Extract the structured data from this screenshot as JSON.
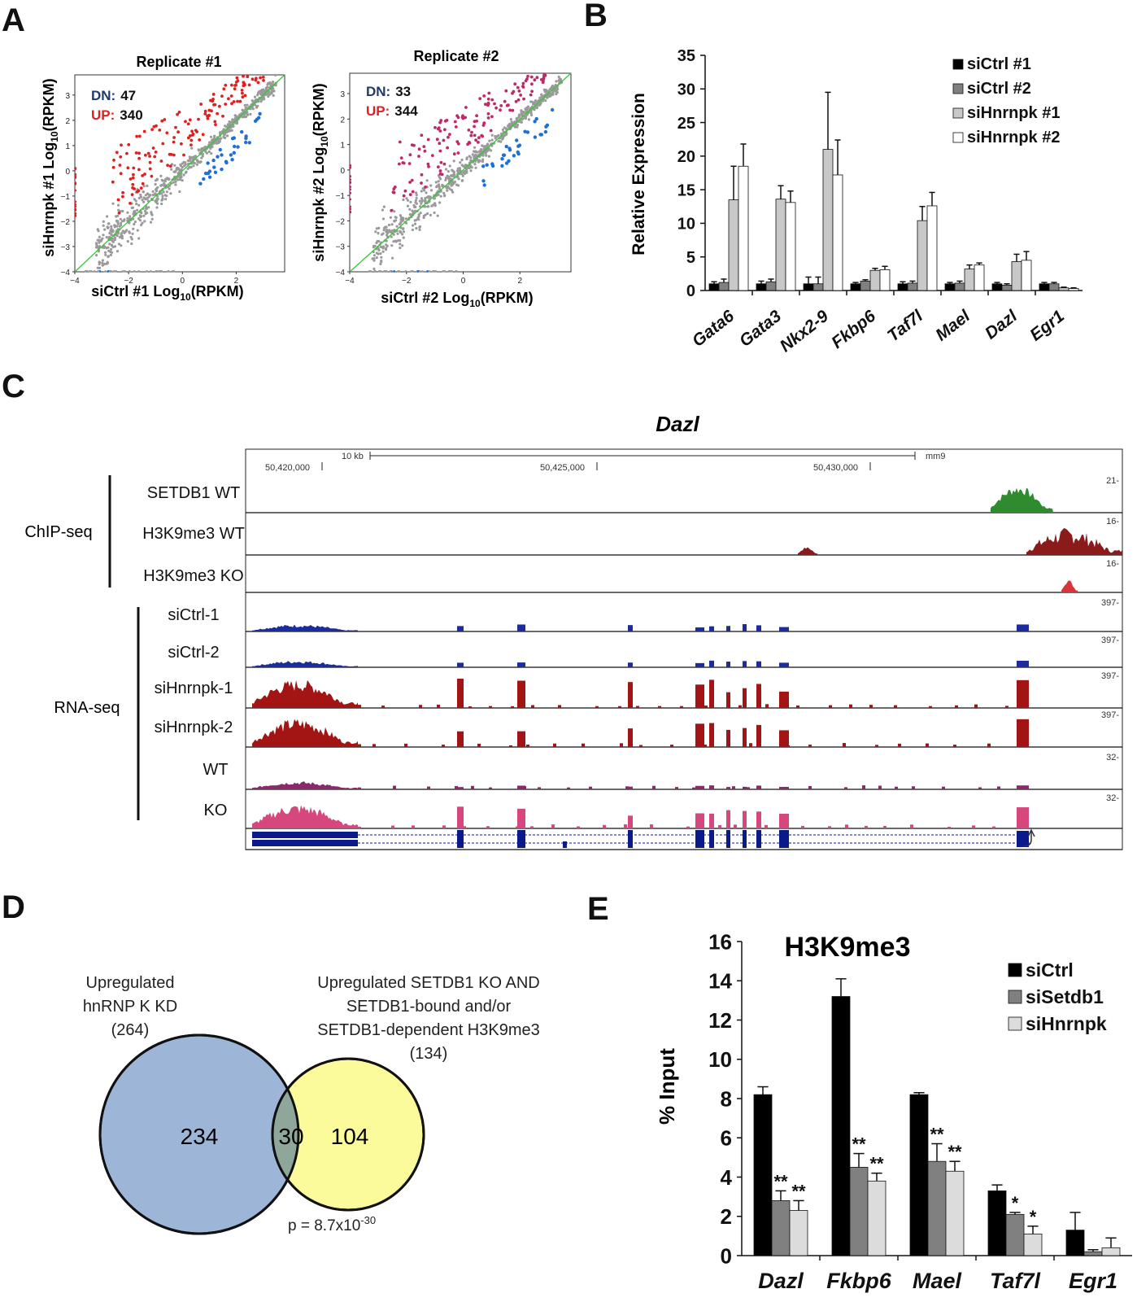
{
  "panel_labels": {
    "a": "A",
    "b": "B",
    "c": "C",
    "d": "D",
    "e": "E"
  },
  "chart_data": [
    {
      "type": "scatter",
      "panel": "A",
      "title": "Replicate #1",
      "xlabel": "siCtrl #1 Log10(RPKM)",
      "xlabel_main": "siCtrl #1 Log",
      "xlabel_sub": "10",
      "xlabel_tail": "(RPKM)",
      "ylabel": "siHnrnpk #1 Log10(RPKM)",
      "ylabel_main": "siHnrnpk #1 Log",
      "ylabel_sub": "10",
      "ylabel_tail": "(RPKM)",
      "xlim": [
        -4,
        3.8
      ],
      "ylim": [
        -4,
        3.8
      ],
      "xticks": [
        -4,
        -2,
        0,
        2
      ],
      "yticks": [
        3,
        2,
        1,
        0,
        -1,
        -2,
        -3,
        -4
      ],
      "dn_label": "DN:",
      "dn_value": "47",
      "up_label": "UP:",
      "up_value": "340",
      "series": [
        {
          "name": "DN",
          "color": "#1e6fd9"
        },
        {
          "name": "UP",
          "color": "#e02020"
        },
        {
          "name": "",
          "color": "#9a9a9a"
        }
      ]
    },
    {
      "type": "scatter",
      "panel": "A",
      "title": "Replicate #2",
      "xlabel": "siCtrl #2 Log10(RPKM)",
      "xlabel_main": "siCtrl #2 Log",
      "xlabel_sub": "10",
      "xlabel_tail": "(RPKM)",
      "ylabel": "siHnrnpk #2 Log10(RPKM)",
      "ylabel_main": "siHnrnpk #2 Log",
      "ylabel_sub": "10",
      "ylabel_tail": "(RPKM)",
      "xlim": [
        -4,
        3.8
      ],
      "ylim": [
        -4,
        3.8
      ],
      "xticks": [
        -4,
        -2,
        0,
        2
      ],
      "yticks": [
        3,
        2,
        1,
        0,
        -1,
        -2,
        -3,
        -4
      ],
      "dn_label": "DN:",
      "dn_value": "33",
      "up_label": "UP:",
      "up_value": "344",
      "series": [
        {
          "name": "DN",
          "color": "#1e6fd9"
        },
        {
          "name": "UP",
          "color": "#c0286a"
        },
        {
          "name": "",
          "color": "#9a9a9a"
        }
      ]
    },
    {
      "type": "bar",
      "panel": "B",
      "ylabel": "Relative Expression",
      "ylim": [
        0,
        35
      ],
      "yticks": [
        0,
        5,
        10,
        15,
        20,
        25,
        30,
        35
      ],
      "categories": [
        "Gata6",
        "Gata3",
        "Nkx2-9",
        "Fkbp6",
        "Taf7l",
        "Mael",
        "Dazl",
        "Egr1"
      ],
      "legend_position": "top-right",
      "series": [
        {
          "name": "siCtrl #1",
          "color": "#000000",
          "values": [
            1.0,
            1.0,
            1.0,
            1.0,
            1.0,
            1.0,
            1.0,
            1.0
          ],
          "errors": [
            0.3,
            0.4,
            1.0,
            0.2,
            0.3,
            0.2,
            0.2,
            0.2
          ]
        },
        {
          "name": "siCtrl #2",
          "color": "#808080",
          "values": [
            1.2,
            1.3,
            1.0,
            1.4,
            1.1,
            1.1,
            0.8,
            1.0
          ],
          "errors": [
            0.5,
            0.4,
            1.0,
            0.2,
            0.3,
            0.3,
            0.2,
            0.2
          ]
        },
        {
          "name": "siHnrnpk #1",
          "color": "#c8c8c8",
          "values": [
            13.5,
            13.6,
            21.0,
            3.0,
            10.4,
            3.2,
            4.3,
            0.4
          ],
          "errors": [
            5.0,
            2.0,
            8.5,
            0.3,
            2.1,
            0.6,
            1.1,
            0.1
          ]
        },
        {
          "name": "siHnrnpk #2",
          "color": "#ffffff",
          "values": [
            18.5,
            13.1,
            17.2,
            3.1,
            12.6,
            3.8,
            4.5,
            0.3
          ],
          "errors": [
            3.3,
            1.7,
            5.2,
            0.5,
            2.0,
            0.3,
            1.3,
            0.1
          ]
        }
      ]
    },
    {
      "type": "bar",
      "panel": "E",
      "title": "H3K9me3",
      "ylabel": "% Input",
      "ylim": [
        0,
        16
      ],
      "yticks": [
        0,
        2,
        4,
        6,
        8,
        10,
        12,
        14,
        16
      ],
      "categories": [
        "Dazl",
        "Fkbp6",
        "Mael",
        "Taf7l",
        "Egr1"
      ],
      "legend_position": "top-right",
      "series": [
        {
          "name": "siCtrl",
          "color": "#000000",
          "values": [
            8.2,
            13.2,
            8.2,
            3.3,
            1.3
          ],
          "errors": [
            0.4,
            0.9,
            0.1,
            0.3,
            0.9
          ],
          "stars": [
            "",
            "",
            "",
            "",
            ""
          ]
        },
        {
          "name": "siSetdb1",
          "color": "#808080",
          "values": [
            2.8,
            4.5,
            4.8,
            2.1,
            0.2
          ],
          "errors": [
            0.5,
            0.7,
            0.9,
            0.1,
            0.1
          ],
          "stars": [
            "**",
            "**",
            "**",
            "*",
            ""
          ]
        },
        {
          "name": "siHnrnpk",
          "color": "#dcdcdc",
          "values": [
            2.3,
            3.8,
            4.3,
            1.1,
            0.4
          ],
          "errors": [
            0.5,
            0.4,
            0.5,
            0.4,
            0.5
          ],
          "stars": [
            "**",
            "**",
            "**",
            "*",
            ""
          ]
        }
      ]
    }
  ],
  "browser": {
    "gene_title": "Dazl",
    "scale_label": "10 kb",
    "assembly": "mm9",
    "coords": [
      "50,420,000",
      "50,425,000",
      "50,430,000"
    ],
    "groups": [
      {
        "name": "ChIP-seq"
      },
      {
        "name": "RNA-seq"
      }
    ],
    "tracks": [
      {
        "label": "SETDB1  WT",
        "max": "21-",
        "color": "#2e8b2e"
      },
      {
        "label": "H3K9me3 WT",
        "max": "16-",
        "color": "#8b1a1a"
      },
      {
        "label": "H3K9me3  KO",
        "max": "16-",
        "color": "#d9343c"
      },
      {
        "label": "siCtrl-1",
        "max": "397-",
        "color": "#1c2c9c"
      },
      {
        "label": "siCtrl-2",
        "max": "397-",
        "color": "#1c2c9c"
      },
      {
        "label": "siHnrnpk-1",
        "max": "397-",
        "color": "#a31515"
      },
      {
        "label": "siHnrnpk-2",
        "max": "397-",
        "color": "#a31515"
      },
      {
        "label": "WT",
        "max": "32-",
        "color": "#8a2a6a"
      },
      {
        "label": "KO",
        "max": "32-",
        "color": "#d6477e"
      }
    ],
    "gene_color": "#0a1a8a"
  },
  "venn": {
    "left_label": [
      "Upregulated",
      "hnRNP K KD",
      "(264)"
    ],
    "right_label": [
      "Upregulated SETDB1 KO AND",
      "SETDB1-bound and/or",
      "SETDB1-dependent H3K9me3",
      "(134)"
    ],
    "left_only": "234",
    "overlap": "30",
    "right_only": "104",
    "p_main": "p = 8.7x10",
    "p_exp": "-30",
    "left_color": "#9db6d8",
    "right_color": "#fbfb9c",
    "overlap_color": "#8fa79a"
  }
}
